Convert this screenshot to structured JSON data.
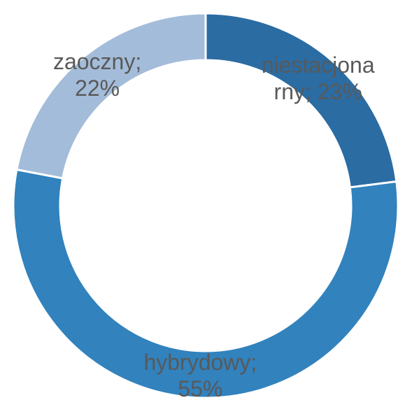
{
  "chart_data": {
    "type": "donut",
    "categories": [
      "niestacjonarny",
      "hybrydowy",
      "zaoczny"
    ],
    "values": [
      23,
      55,
      22
    ],
    "value_labels": [
      "23%",
      "55%",
      "22%"
    ],
    "label_separator": "; ",
    "colors": [
      "#2b6ca3",
      "#3182bd",
      "#a3bcd9"
    ]
  }
}
